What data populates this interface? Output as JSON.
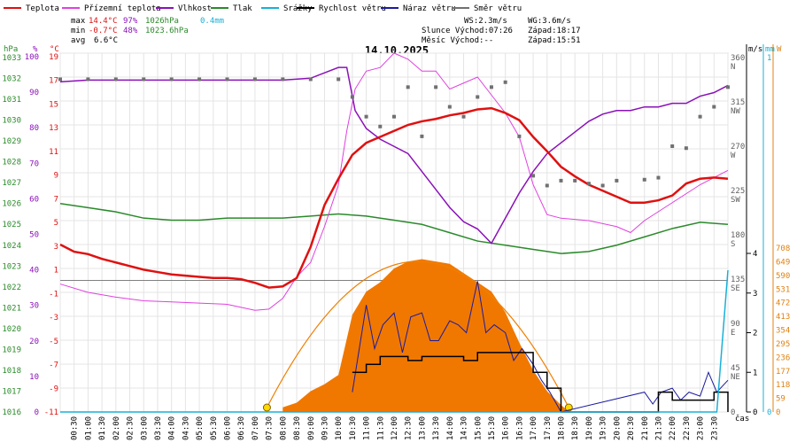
{
  "chart_data": {
    "type": "line",
    "title": "14.10.2025",
    "xlabel": "čas",
    "legend": [
      {
        "name": "Teplota",
        "color": "#e01010"
      },
      {
        "name": "Přízemní teplota",
        "color": "#e040e0"
      },
      {
        "name": "Vlhkost",
        "color": "#8a10b8"
      },
      {
        "name": "Tlak",
        "color": "#2a8a2a"
      },
      {
        "name": "Srážky",
        "color": "#18b0d8"
      },
      {
        "name": "Rychlost větru",
        "color": "#000000"
      },
      {
        "name": "Náraz větru",
        "color": "#1a1aa0"
      },
      {
        "name": "Směr větru",
        "color": "#707070"
      }
    ],
    "stats": {
      "max": {
        "label": "max",
        "temp": "14.4°C",
        "hum": "97%",
        "press": "1026hPa",
        "rain": "0.4mm"
      },
      "min": {
        "label": "min",
        "temp": "-0.7°C",
        "hum": "48%",
        "press": "1023.6hPa"
      },
      "avg": {
        "label": "avg",
        "temp": "6.6°C"
      }
    },
    "info": {
      "ws": "WS:2.3m/s",
      "wg": "WG:3.6m/s",
      "sun": "Slunce Východ:07:26",
      "sunset": "Západ:18:17",
      "moon": "Měsíc  Východ:--",
      "moonset": "Západ:15:51"
    },
    "axes": {
      "pressure": {
        "unit": "hPa",
        "ticks": [
          "1033",
          "1032",
          "1031",
          "1030",
          "1029",
          "1028",
          "1027",
          "1026",
          "1025",
          "1024",
          "1023",
          "1022",
          "1021",
          "1020",
          "1019",
          "1018",
          "1017",
          "1016"
        ]
      },
      "humidity": {
        "unit": "%",
        "ticks": [
          "100",
          "90",
          "80",
          "70",
          "60",
          "50",
          "40",
          "30",
          "20",
          "10",
          "0"
        ]
      },
      "temperature": {
        "unit": "°C",
        "ticks": [
          "19",
          "17",
          "15",
          "13",
          "11",
          "9",
          "7",
          "5",
          "3",
          "1",
          "-1",
          "-3",
          "-5",
          "-7",
          "-9",
          "-11"
        ]
      },
      "direction": {
        "ticks": [
          "360\nN",
          "315\nNW",
          "270\nW",
          "225\nSW",
          "180\nS",
          "135\nSE",
          "90\nE",
          "45\nNE",
          "0"
        ]
      },
      "wind": {
        "unit": "m/s",
        "ticks": [
          "4",
          "3",
          "2",
          "1",
          "0"
        ]
      },
      "rain": {
        "unit": "mm",
        "ticks": [
          "1",
          "0"
        ]
      },
      "solar": {
        "unit": "W",
        "ticks": [
          "708",
          "649",
          "590",
          "531",
          "472",
          "413",
          "354",
          "295",
          "236",
          "177",
          "118",
          "59",
          "0"
        ]
      },
      "time": {
        "ticks": [
          "00:30",
          "01:00",
          "01:30",
          "02:00",
          "02:30",
          "03:00",
          "03:30",
          "04:00",
          "04:30",
          "05:00",
          "05:30",
          "06:00",
          "06:30",
          "07:00",
          "07:30",
          "08:00",
          "08:30",
          "09:00",
          "09:30",
          "10:00",
          "10:30",
          "11:00",
          "11:30",
          "12:00",
          "12:30",
          "13:00",
          "13:30",
          "14:00",
          "14:30",
          "15:00",
          "15:30",
          "16:00",
          "16:30",
          "17:00",
          "17:30",
          "18:00",
          "18:30",
          "19:00",
          "19:30",
          "20:00",
          "20:30",
          "21:00",
          "21:30",
          "22:00",
          "22:30",
          "23:00",
          "23:30"
        ]
      }
    },
    "series": {
      "temperature": {
        "x_hours": [
          0,
          0.5,
          1,
          1.5,
          2,
          2.5,
          3,
          3.5,
          4,
          4.5,
          5,
          5.5,
          6,
          6.5,
          7,
          7.5,
          8,
          8.5,
          9,
          9.5,
          10,
          10.5,
          11,
          11.5,
          12,
          12.5,
          13,
          13.5,
          14,
          14.5,
          15,
          15.5,
          16,
          16.5,
          17,
          17.5,
          18,
          18.5,
          19,
          19.5,
          20,
          20.5,
          21,
          21.5,
          22,
          22.5,
          23,
          23.5,
          24
        ],
        "values": [
          3,
          2.4,
          2.2,
          1.8,
          1.5,
          1.2,
          0.9,
          0.7,
          0.5,
          0.4,
          0.3,
          0.2,
          0.2,
          0.1,
          -0.2,
          -0.6,
          -0.5,
          0.2,
          2.8,
          6.3,
          8.5,
          10.5,
          11.5,
          12.0,
          12.5,
          13.0,
          13.3,
          13.5,
          13.8,
          14.0,
          14.3,
          14.4,
          14.0,
          13.4,
          12.0,
          10.8,
          9.5,
          8.7,
          8.0,
          7.5,
          7.0,
          6.5,
          6.5,
          6.7,
          7.1,
          8.1,
          8.5,
          8.6,
          8.5
        ]
      },
      "ground_temperature": {
        "x_hours": [
          0,
          1,
          2,
          3,
          4,
          5,
          6,
          7,
          7.5,
          8,
          8.5,
          9,
          9.5,
          10,
          10.3,
          10.6,
          11,
          11.5,
          12,
          12.5,
          13,
          13.5,
          14,
          14.5,
          15,
          15.5,
          16,
          16.5,
          17,
          17.5,
          18,
          19,
          20,
          20.5,
          21,
          22,
          23,
          24
        ],
        "values": [
          -0.3,
          -1.0,
          -1.4,
          -1.7,
          -1.8,
          -1.9,
          -2.0,
          -2.5,
          -2.4,
          -1.5,
          0.3,
          1.5,
          4.5,
          8.0,
          12.5,
          16,
          17.5,
          17.8,
          19,
          18.5,
          17.5,
          17.5,
          16,
          16.5,
          17,
          15.5,
          14,
          12,
          8,
          5.5,
          5.2,
          5.0,
          4.5,
          4.0,
          5.0,
          6.5,
          8.0,
          9.2
        ]
      },
      "humidity": {
        "x_hours": [
          0,
          1,
          2,
          3,
          4,
          5,
          6,
          7,
          8,
          9,
          10,
          10.3,
          10.6,
          11,
          11.5,
          12,
          12.5,
          13,
          13.5,
          14,
          14.5,
          15,
          15.5,
          16,
          16.5,
          17,
          17.5,
          18,
          18.5,
          19,
          19.5,
          20,
          20.5,
          21,
          21.5,
          22,
          22.5,
          23,
          23.5,
          24
        ],
        "values": [
          93,
          93.5,
          93.5,
          93.5,
          93.5,
          93.5,
          93.5,
          93.5,
          93.5,
          94,
          97,
          97,
          85,
          80,
          77,
          75,
          73,
          68,
          63,
          58,
          54,
          52,
          48,
          55,
          62,
          68,
          73,
          76,
          79,
          82,
          84,
          85,
          85,
          86,
          86,
          87,
          87,
          89,
          90,
          92
        ]
      },
      "pressure": {
        "x_hours": [
          0,
          1,
          2,
          3,
          4,
          5,
          6,
          7,
          8,
          9,
          10,
          11,
          12,
          13,
          14,
          15,
          16,
          17,
          18,
          19,
          20,
          21,
          22,
          23,
          24
        ],
        "values": [
          1026.0,
          1025.8,
          1025.6,
          1025.3,
          1025.2,
          1025.2,
          1025.3,
          1025.3,
          1025.3,
          1025.4,
          1025.5,
          1025.4,
          1025.2,
          1025.0,
          1024.6,
          1024.2,
          1024.0,
          1023.8,
          1023.6,
          1023.7,
          1024.0,
          1024.4,
          1024.8,
          1025.1,
          1025.0
        ]
      },
      "wind_direction": {
        "x_hours": [
          0,
          1,
          2,
          3,
          4,
          5,
          6,
          7,
          8,
          9,
          10,
          10.5,
          11,
          11.5,
          12,
          12.5,
          13,
          13.5,
          14,
          14.5,
          15,
          15.5,
          16,
          16.5,
          17,
          17.5,
          18,
          18.5,
          19,
          19.5,
          20,
          21,
          21.5,
          22,
          22.5,
          23,
          23.5,
          24
        ],
        "values": [
          338,
          338,
          338,
          338,
          338,
          338,
          338,
          338,
          338,
          338,
          338,
          320,
          300,
          290,
          300,
          330,
          280,
          330,
          310,
          300,
          320,
          330,
          335,
          280,
          240,
          230,
          235,
          235,
          232,
          230,
          235,
          236,
          238,
          270,
          268,
          300,
          310,
          330
        ]
      },
      "solar": {
        "x_hours": [
          8,
          8.5,
          9,
          9.5,
          10,
          10.5,
          11,
          11.5,
          12,
          12.5,
          13,
          13.5,
          14,
          14.5,
          15,
          15.5,
          16,
          16.5,
          17,
          17.5,
          18,
          18.3
        ],
        "values": [
          20,
          40,
          90,
          120,
          160,
          420,
          520,
          560,
          620,
          650,
          660,
          650,
          640,
          600,
          560,
          520,
          430,
          300,
          180,
          90,
          30,
          0
        ]
      },
      "wind_speed": {
        "x_hours": [
          10.5,
          11,
          11.5,
          12,
          12.5,
          13,
          13.5,
          14,
          14.5,
          15,
          15.5,
          16,
          16.5,
          17,
          17.5,
          18,
          21.5,
          22,
          23,
          23.5,
          24
        ],
        "values": [
          1,
          1.2,
          1.4,
          1.4,
          1.3,
          1.4,
          1.4,
          1.4,
          1.3,
          1.5,
          1.5,
          1.5,
          1.5,
          1,
          0.6,
          0,
          0.5,
          0.3,
          0.3,
          0.5,
          0
        ]
      },
      "wind_gust": {
        "x_hours": [
          10.5,
          11,
          11.3,
          11.6,
          12,
          12.3,
          12.6,
          13,
          13.3,
          13.6,
          14,
          14.3,
          14.6,
          15,
          15.3,
          15.6,
          16,
          16.3,
          16.6,
          17,
          17.3,
          17.6,
          18,
          21,
          21.3,
          21.6,
          22,
          22.3,
          22.6,
          23,
          23.3,
          23.6,
          24
        ],
        "values": [
          0.5,
          2.7,
          1.6,
          2.2,
          2.5,
          1.5,
          2.4,
          2.5,
          1.8,
          1.8,
          2.3,
          2.2,
          2.0,
          3.3,
          2.0,
          2.2,
          2.0,
          1.3,
          1.6,
          1.2,
          0.8,
          0.5,
          0,
          0.5,
          0.2,
          0.5,
          0.6,
          0.3,
          0.5,
          0.4,
          1.0,
          0.5,
          0.8
        ]
      },
      "rain": {
        "x_hours": [
          0,
          23.6,
          23.8,
          24
        ],
        "values": [
          0,
          0,
          0.2,
          0.4
        ]
      }
    }
  }
}
